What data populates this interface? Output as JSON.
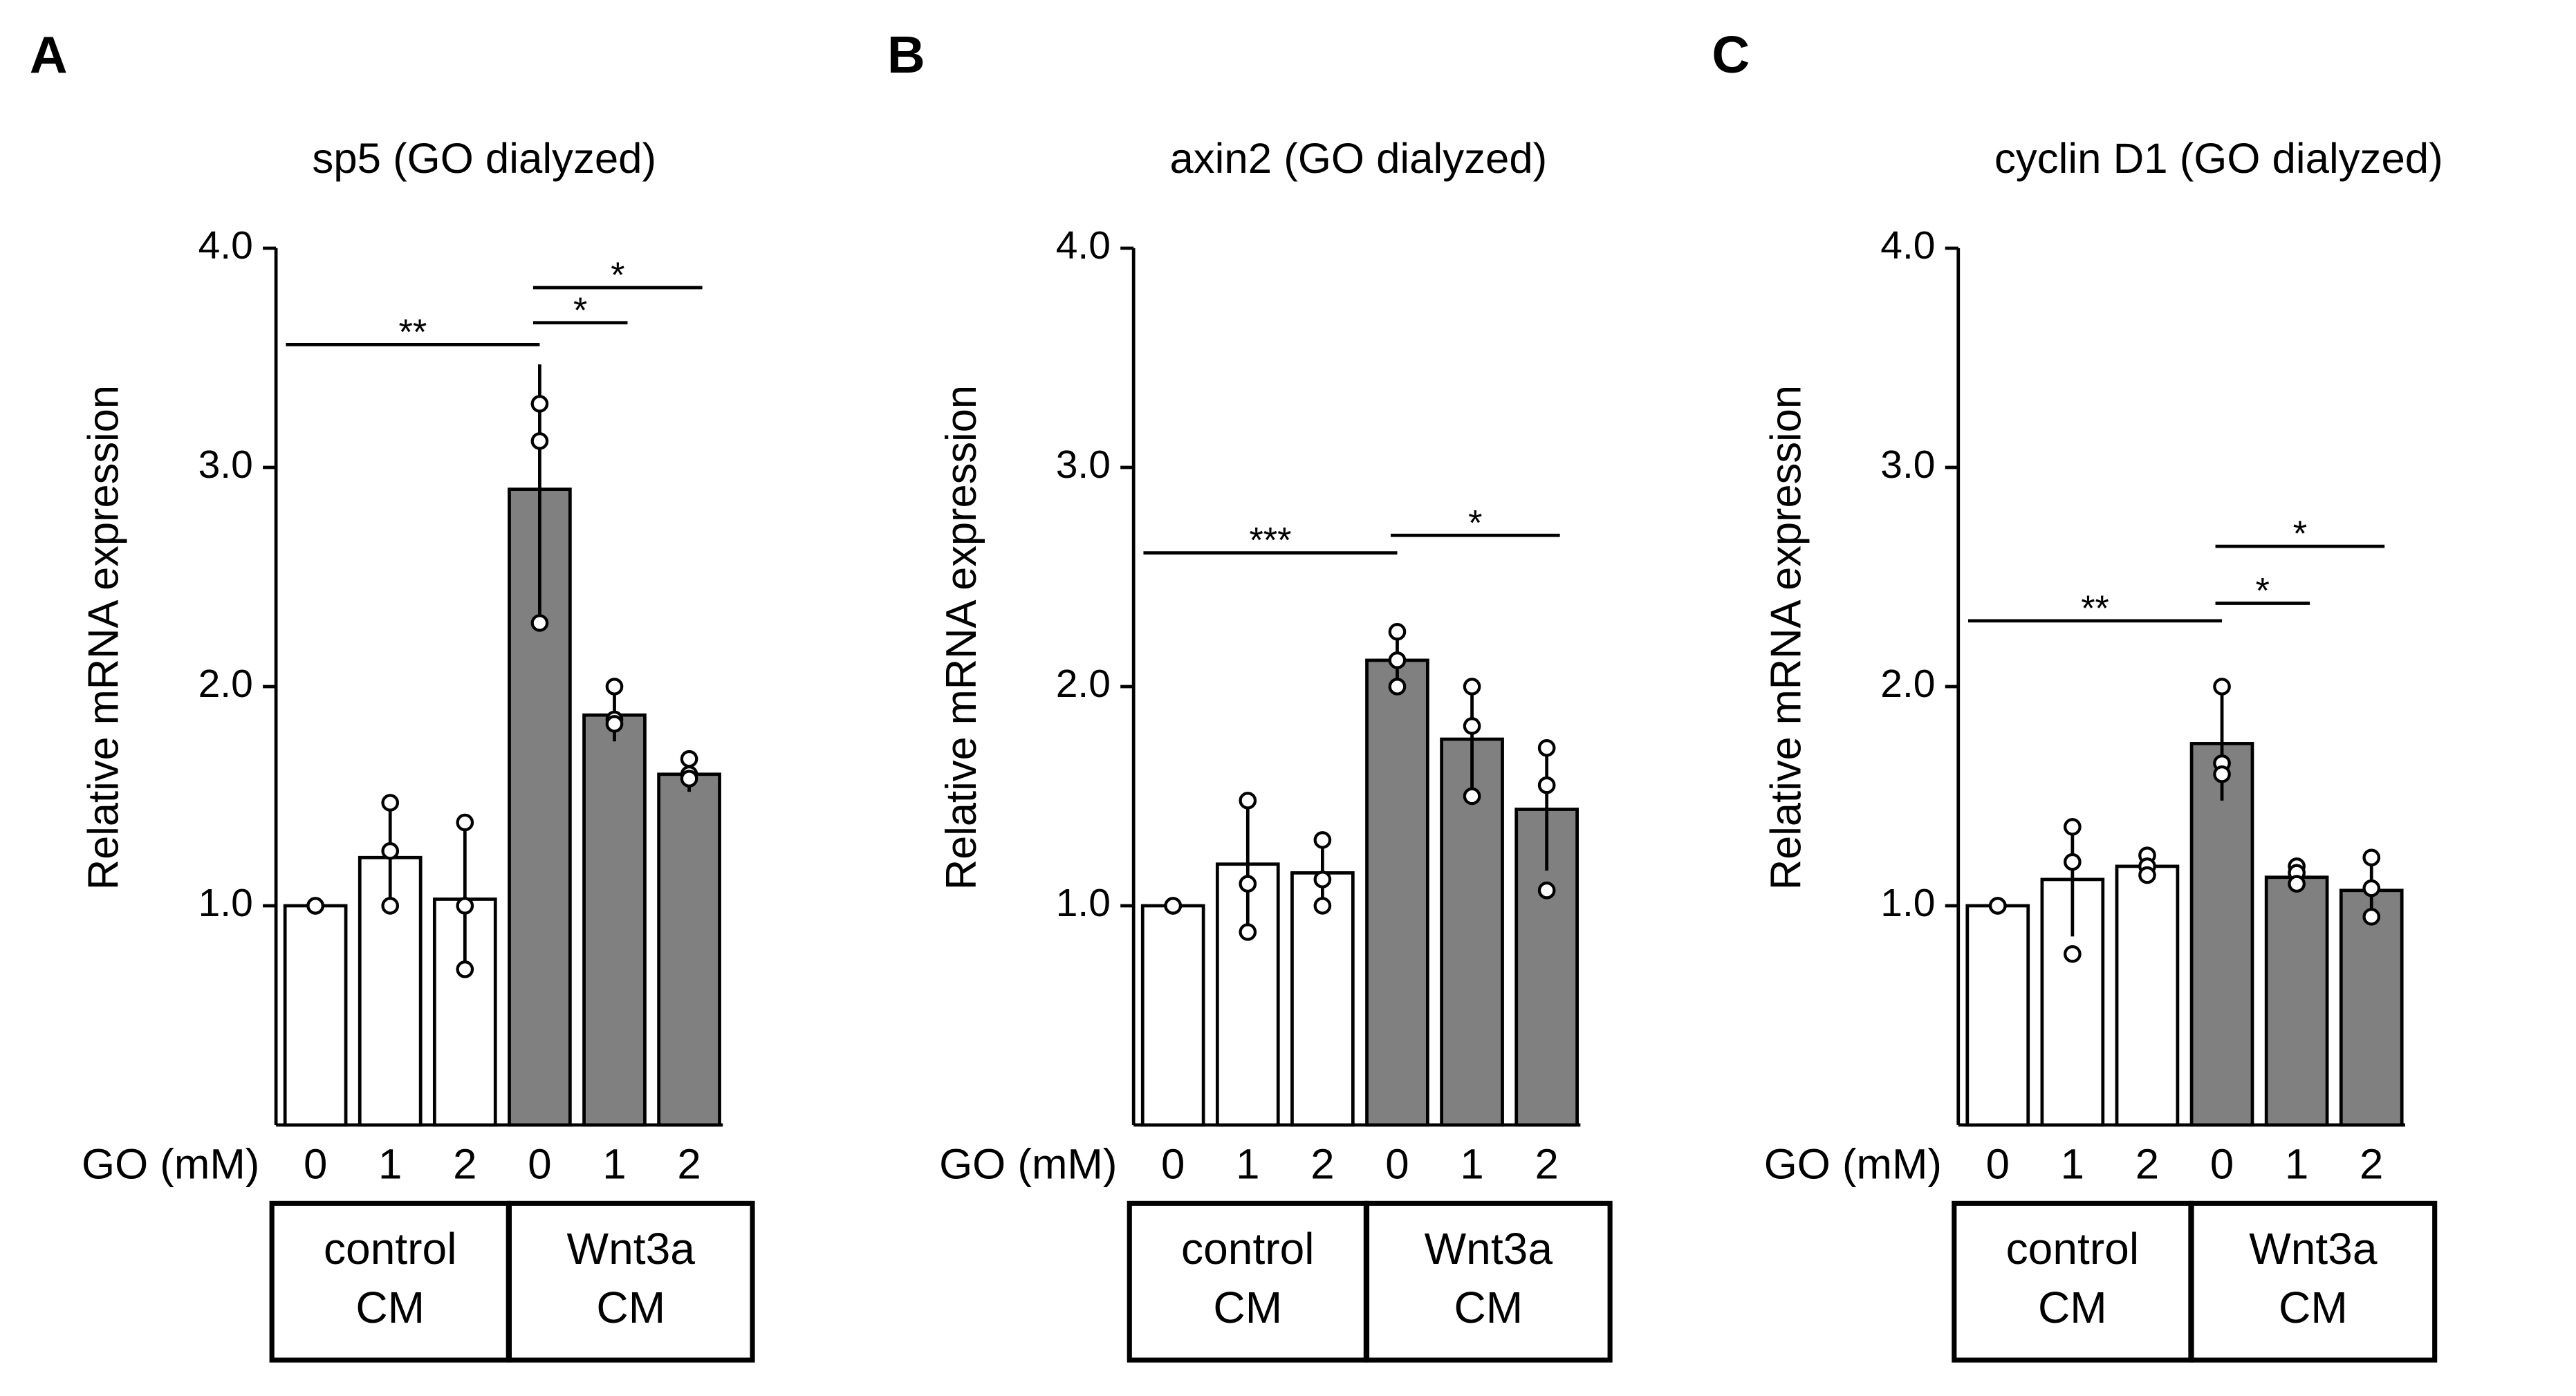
{
  "chart_data": [
    {
      "type": "bar",
      "panel": "A",
      "title": "sp5 (GO dialyzed)",
      "ylabel": "Relative mRNA expression",
      "xlabel": "GO (mM)",
      "categories": [
        "0",
        "1",
        "2",
        "0",
        "1",
        "2"
      ],
      "values": [
        1.0,
        1.22,
        1.03,
        2.9,
        1.87,
        1.6
      ],
      "errors": [
        0,
        0.26,
        0.35,
        0.57,
        0.12,
        0.08
      ],
      "points": [
        [
          1.0,
          1.0,
          1.0
        ],
        [
          1.47,
          1.25,
          1.0
        ],
        [
          1.38,
          1.0,
          0.71
        ],
        [
          3.29,
          3.12,
          2.29
        ],
        [
          2.0,
          1.85,
          1.83
        ],
        [
          1.67,
          1.6,
          1.58
        ]
      ],
      "colors": [
        "#ffffff",
        "#ffffff",
        "#ffffff",
        "#808080",
        "#808080",
        "#808080"
      ],
      "groups": [
        {
          "lines": [
            "control",
            "CM"
          ]
        },
        {
          "lines": [
            "Wnt3a",
            "CM"
          ]
        }
      ],
      "significance": [
        {
          "label": "**",
          "from": 0,
          "to": 3,
          "y": 3.56
        },
        {
          "label": "*",
          "from": 3,
          "to": 4,
          "y": 3.66
        },
        {
          "label": "*",
          "from": 3,
          "to": 5,
          "y": 3.82
        }
      ],
      "ylim": [
        0,
        4
      ],
      "yticks": [
        {
          "value": 1,
          "label": "1.0"
        },
        {
          "value": 2,
          "label": "2.0"
        },
        {
          "value": 3,
          "label": "3.0"
        },
        {
          "value": 4,
          "label": "4.0"
        }
      ]
    },
    {
      "type": "bar",
      "panel": "B",
      "title": "axin2 (GO dialyzed)",
      "ylabel": "Relative mRNA expression",
      "xlabel": "GO (mM)",
      "categories": [
        "0",
        "1",
        "2",
        "0",
        "1",
        "2"
      ],
      "values": [
        1.0,
        1.19,
        1.15,
        2.12,
        1.76,
        1.44
      ],
      "errors": [
        0,
        0.29,
        0.16,
        0.13,
        0.24,
        0.28
      ],
      "points": [
        [
          1.0,
          1.0,
          1.0
        ],
        [
          1.48,
          1.1,
          0.88
        ],
        [
          1.3,
          1.12,
          1.0
        ],
        [
          2.25,
          2.12,
          2.0
        ],
        [
          2.0,
          1.82,
          1.5
        ],
        [
          1.72,
          1.55,
          1.07
        ]
      ],
      "colors": [
        "#ffffff",
        "#ffffff",
        "#ffffff",
        "#808080",
        "#808080",
        "#808080"
      ],
      "groups": [
        {
          "lines": [
            "control",
            "CM"
          ]
        },
        {
          "lines": [
            "Wnt3a",
            "CM"
          ]
        }
      ],
      "significance": [
        {
          "label": "***",
          "from": 0,
          "to": 3,
          "y": 2.61
        },
        {
          "label": "*",
          "from": 3,
          "to": 5,
          "y": 2.69
        }
      ],
      "ylim": [
        0,
        4
      ],
      "yticks": [
        {
          "value": 1,
          "label": "1.0"
        },
        {
          "value": 2,
          "label": "2.0"
        },
        {
          "value": 3,
          "label": "3.0"
        },
        {
          "value": 4,
          "label": "4.0"
        }
      ]
    },
    {
      "type": "bar",
      "panel": "C",
      "title": "cyclin D1 (GO dialyzed)",
      "ylabel": "Relative mRNA expression",
      "xlabel": "GO (mM)",
      "categories": [
        "0",
        "1",
        "2",
        "0",
        "1",
        "2"
      ],
      "values": [
        1.0,
        1.12,
        1.18,
        1.74,
        1.13,
        1.07
      ],
      "errors": [
        0,
        0.26,
        0.08,
        0.26,
        0.06,
        0.13
      ],
      "points": [
        [
          1.0,
          1.0,
          1.0
        ],
        [
          1.36,
          1.2,
          0.78
        ],
        [
          1.23,
          1.18,
          1.14
        ],
        [
          2.0,
          1.65,
          1.6
        ],
        [
          1.18,
          1.15,
          1.1
        ],
        [
          1.22,
          1.08,
          0.95
        ]
      ],
      "colors": [
        "#ffffff",
        "#ffffff",
        "#ffffff",
        "#808080",
        "#808080",
        "#808080"
      ],
      "groups": [
        {
          "lines": [
            "control",
            "CM"
          ]
        },
        {
          "lines": [
            "Wnt3a",
            "CM"
          ]
        }
      ],
      "significance": [
        {
          "label": "**",
          "from": 0,
          "to": 3,
          "y": 2.3
        },
        {
          "label": "*",
          "from": 3,
          "to": 4,
          "y": 2.38
        },
        {
          "label": "*",
          "from": 3,
          "to": 5,
          "y": 2.64
        }
      ],
      "ylim": [
        0,
        4
      ],
      "yticks": [
        {
          "value": 1,
          "label": "1.0"
        },
        {
          "value": 2,
          "label": "2.0"
        },
        {
          "value": 3,
          "label": "3.0"
        },
        {
          "value": 4,
          "label": "4.0"
        }
      ]
    }
  ]
}
